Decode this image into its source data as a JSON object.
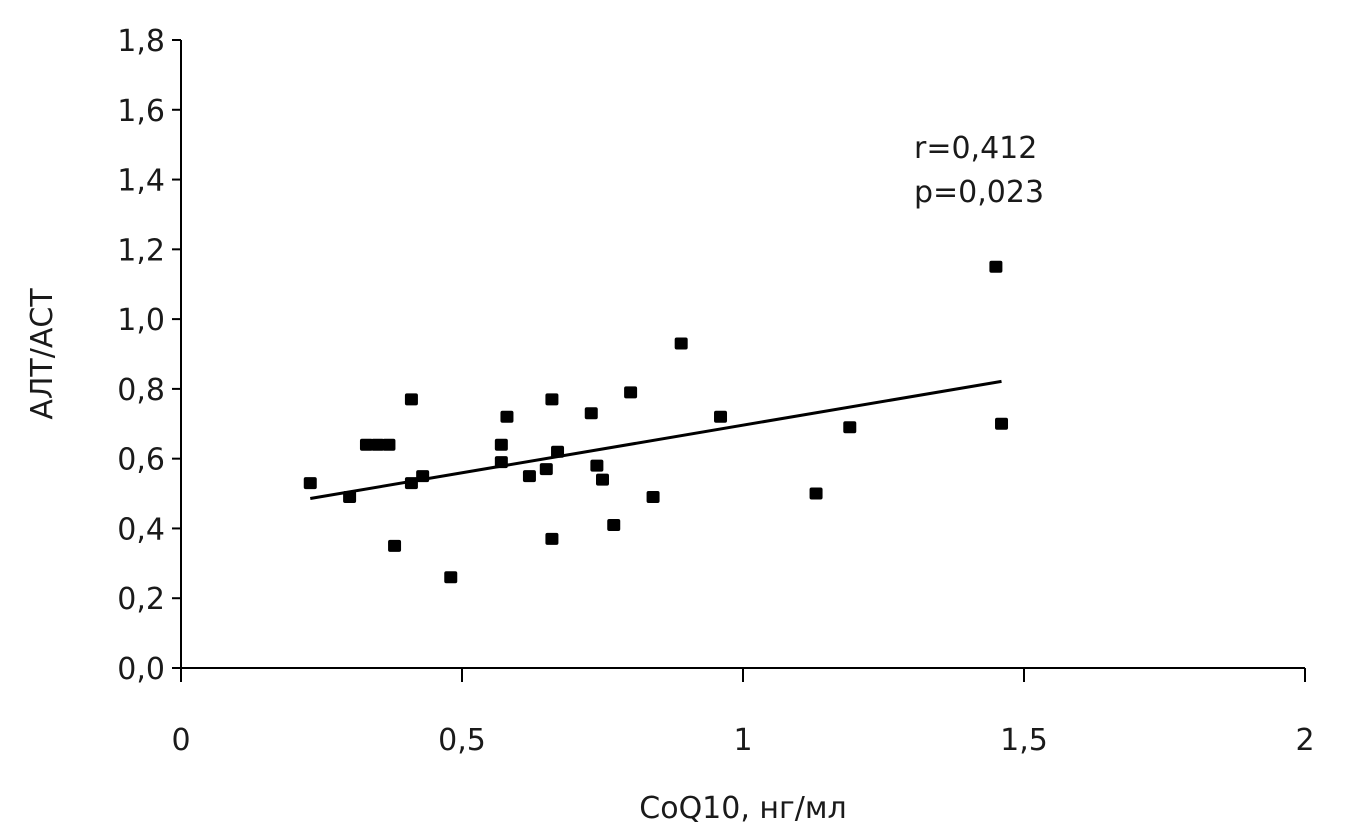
{
  "chart_data": {
    "type": "scatter",
    "title": "",
    "xlabel": "CoQ10, нг/мл",
    "ylabel": "АЛТ/АСТ",
    "xlim": [
      0,
      2
    ],
    "ylim": [
      0,
      1.8
    ],
    "x_ticks": [
      0,
      0.5,
      1,
      1.5,
      2
    ],
    "x_tick_labels": [
      "0",
      "0,5",
      "1",
      "1,5",
      "2"
    ],
    "y_ticks": [
      0,
      0.2,
      0.4,
      0.6,
      0.8,
      1.0,
      1.2,
      1.4,
      1.6,
      1.8
    ],
    "y_tick_labels": [
      "0,0",
      "0,2",
      "0,4",
      "0,6",
      "0,8",
      "1,0",
      "1,2",
      "1,4",
      "1,6",
      "1,8"
    ],
    "grid": false,
    "series": [
      {
        "name": "data",
        "points": [
          [
            0.23,
            0.53
          ],
          [
            0.3,
            0.49
          ],
          [
            0.33,
            0.64
          ],
          [
            0.35,
            0.64
          ],
          [
            0.37,
            0.64
          ],
          [
            0.38,
            0.35
          ],
          [
            0.41,
            0.77
          ],
          [
            0.41,
            0.53
          ],
          [
            0.43,
            0.55
          ],
          [
            0.48,
            0.26
          ],
          [
            0.57,
            0.64
          ],
          [
            0.57,
            0.59
          ],
          [
            0.58,
            0.72
          ],
          [
            0.62,
            0.55
          ],
          [
            0.65,
            0.57
          ],
          [
            0.66,
            0.77
          ],
          [
            0.66,
            0.37
          ],
          [
            0.67,
            0.62
          ],
          [
            0.73,
            0.73
          ],
          [
            0.74,
            0.58
          ],
          [
            0.75,
            0.54
          ],
          [
            0.77,
            0.41
          ],
          [
            0.8,
            0.79
          ],
          [
            0.84,
            0.49
          ],
          [
            0.89,
            0.93
          ],
          [
            0.96,
            0.72
          ],
          [
            1.13,
            0.5
          ],
          [
            1.19,
            0.69
          ],
          [
            1.45,
            1.15
          ],
          [
            1.46,
            0.7
          ]
        ]
      }
    ],
    "trendline": {
      "type": "linear",
      "x_range": [
        0.23,
        1.46
      ],
      "slope": 0.273,
      "intercept": 0.423
    },
    "annotations": [
      "r=0,412",
      "p=0,023"
    ]
  }
}
